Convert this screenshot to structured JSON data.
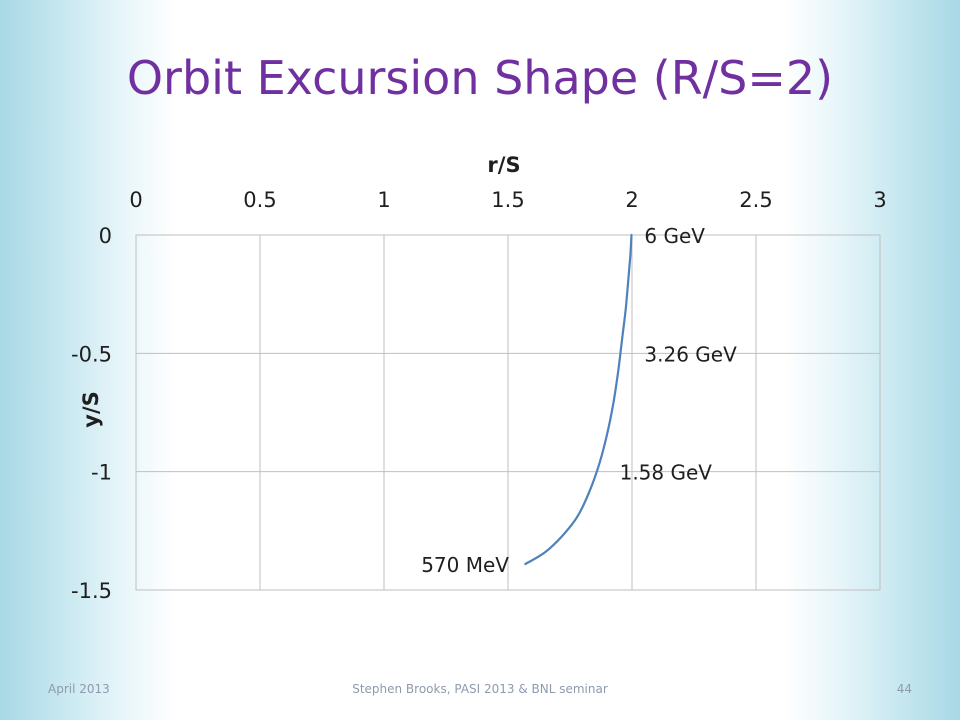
{
  "slide": {
    "title": "Orbit Excursion Shape (R/S=2)",
    "footer": {
      "date": "April 2013",
      "center": "Stephen Brooks, PASI 2013 & BNL seminar",
      "page_number": "44"
    },
    "title_color": "#7030a0",
    "curve_color": "#4f81bd"
  },
  "chart_data": {
    "type": "line",
    "title": "",
    "xlabel": "r/S",
    "ylabel": "y/S",
    "xlim": [
      0,
      3
    ],
    "ylim": [
      -1.5,
      0
    ],
    "x_ticks": [
      "0",
      "0.5",
      "1",
      "1.5",
      "2",
      "2.5",
      "3"
    ],
    "y_ticks": [
      "0",
      "-0.5",
      "-1",
      "-1.5"
    ],
    "x_axis_position": "top",
    "grid": true,
    "series": [
      {
        "x": [
          1.57,
          1.65,
          1.72,
          1.78,
          1.83,
          1.87,
          1.9,
          1.925,
          1.945,
          1.96,
          1.975,
          1.985,
          1.993,
          1.998
        ],
        "y": [
          -1.39,
          -1.34,
          -1.27,
          -1.19,
          -1.08,
          -0.96,
          -0.84,
          -0.71,
          -0.57,
          -0.44,
          -0.31,
          -0.19,
          -0.09,
          0.0
        ]
      }
    ],
    "annotations": [
      {
        "text": "6 GeV",
        "x": 2.05,
        "y": 0.0
      },
      {
        "text": "3.26 GeV",
        "x": 2.05,
        "y": -0.5
      },
      {
        "text": "1.58 GeV",
        "x": 1.95,
        "y": -1.0
      },
      {
        "text": "570 MeV",
        "x": 1.15,
        "y": -1.39
      }
    ]
  }
}
